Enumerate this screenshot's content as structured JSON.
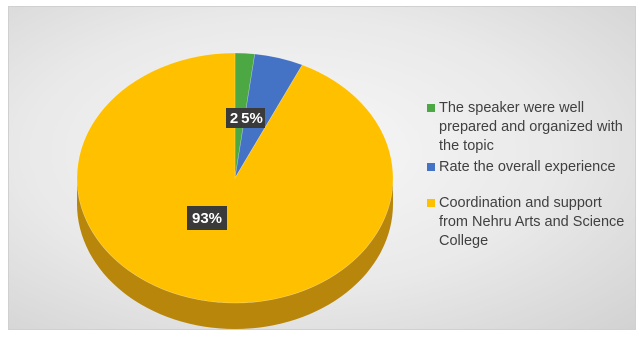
{
  "chart_data": {
    "type": "pie",
    "title": "",
    "categories": [
      "The speaker were well prepared and organized with the topic",
      "Rate the overall experience",
      "Coordination and support from Nehru Arts and Science College"
    ],
    "values": [
      2,
      5,
      93
    ],
    "unit": "%",
    "data_labels": [
      "2",
      "5%",
      "93%"
    ],
    "colors": [
      "#4CA843",
      "#4472C4",
      "#FFC000"
    ],
    "side_colors": [
      "#2E7A29",
      "#2F5597",
      "#B8860B"
    ],
    "style": "3d",
    "legend_position": "right",
    "legend": [
      {
        "label": "The speaker were well prepared and organized with the topic",
        "color": "#4CA843"
      },
      {
        "label": "Rate the overall experience",
        "color": "#4472C4"
      },
      {
        "label": "Coordination and support from Nehru Arts and Science College",
        "color": "#FFC000"
      }
    ]
  }
}
